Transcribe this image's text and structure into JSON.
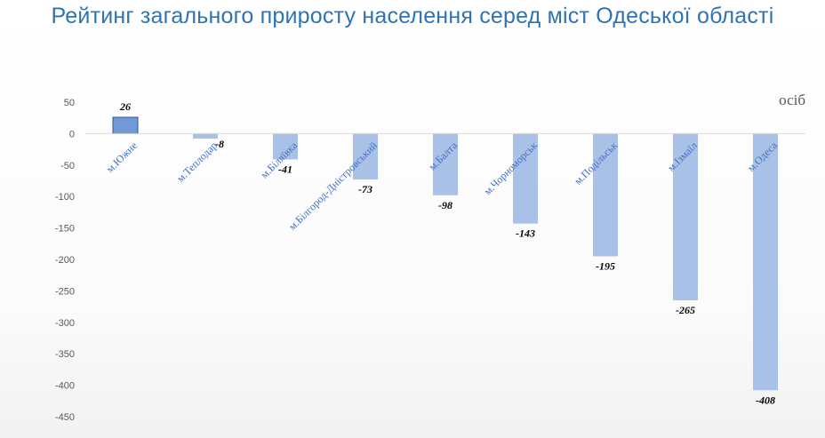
{
  "title": "Рейтинг загального приросту населення серед міст Одеської області",
  "unit_label": "осіб",
  "colors": {
    "title": "#2e74b5",
    "bar": "#a9c1e6",
    "bar_highlight": "#7299d6",
    "bar_highlight_border": "#2f5597",
    "category_text": "#4472c4",
    "axis": "#d9d9d9"
  },
  "chart_data": {
    "type": "bar",
    "title": "Рейтинг загального приросту населення серед міст Одеської області",
    "ylabel": "осіб",
    "xlabel": "",
    "ylim": [
      -450,
      50
    ],
    "yticks": [
      50,
      0,
      -50,
      -100,
      -150,
      -200,
      -250,
      -300,
      -350,
      -400,
      -450
    ],
    "grid": false,
    "categories": [
      "м.Южне",
      "м.Теплодар",
      "м.Біляївка",
      "м.Білгород-Дністровський",
      "м.Балта",
      "м.Чорноморськ",
      "м.Подільськ",
      "м.Ізмаїл",
      "м.Одеса"
    ],
    "values": [
      26,
      -8,
      -41,
      -73,
      -98,
      -143,
      -195,
      -265,
      -408
    ],
    "data_labels": [
      "26",
      "-8",
      "-41",
      "-73",
      "-98",
      "-143",
      "-195",
      "-265",
      "-408"
    ]
  }
}
